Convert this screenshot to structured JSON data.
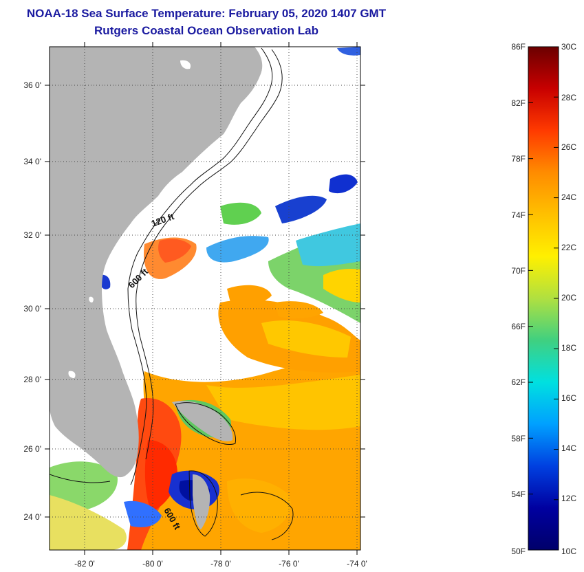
{
  "title": {
    "line1": "NOAA-18 Sea Surface Temperature:  February 05, 2020 1407 GMT",
    "line2": "Rutgers Coastal Ocean Observation Lab"
  },
  "map": {
    "lat_labels": [
      "36 0'",
      "34 0'",
      "32 0'",
      "30 0'",
      "28 0'",
      "26 0'",
      "24 0'"
    ],
    "lon_labels": [
      "-82 0'",
      "-80 0'",
      "-78 0'",
      "-76 0'",
      "-74 0'"
    ],
    "contour_labels": [
      "120 ft",
      "600 ft",
      "600 ft"
    ],
    "colors": {
      "land": "#b4b4b4",
      "cloud": "#ffffff",
      "grid": "#444444"
    }
  },
  "colorbar": {
    "fahrenheit_labels": [
      "86F",
      "82F",
      "78F",
      "74F",
      "70F",
      "66F",
      "62F",
      "58F",
      "54F",
      "50F"
    ],
    "celsius_labels": [
      "30C",
      "28C",
      "26C",
      "24C",
      "22C",
      "20C",
      "18C",
      "16C",
      "14C",
      "12C",
      "10C"
    ],
    "gradient_colors": [
      "#6b0000",
      "#c80000",
      "#ff3a00",
      "#ff8c00",
      "#ffc000",
      "#fff000",
      "#b0e040",
      "#40d080",
      "#00e0e0",
      "#00a0ff",
      "#0040e0",
      "#0000a0",
      "#00006a"
    ]
  }
}
